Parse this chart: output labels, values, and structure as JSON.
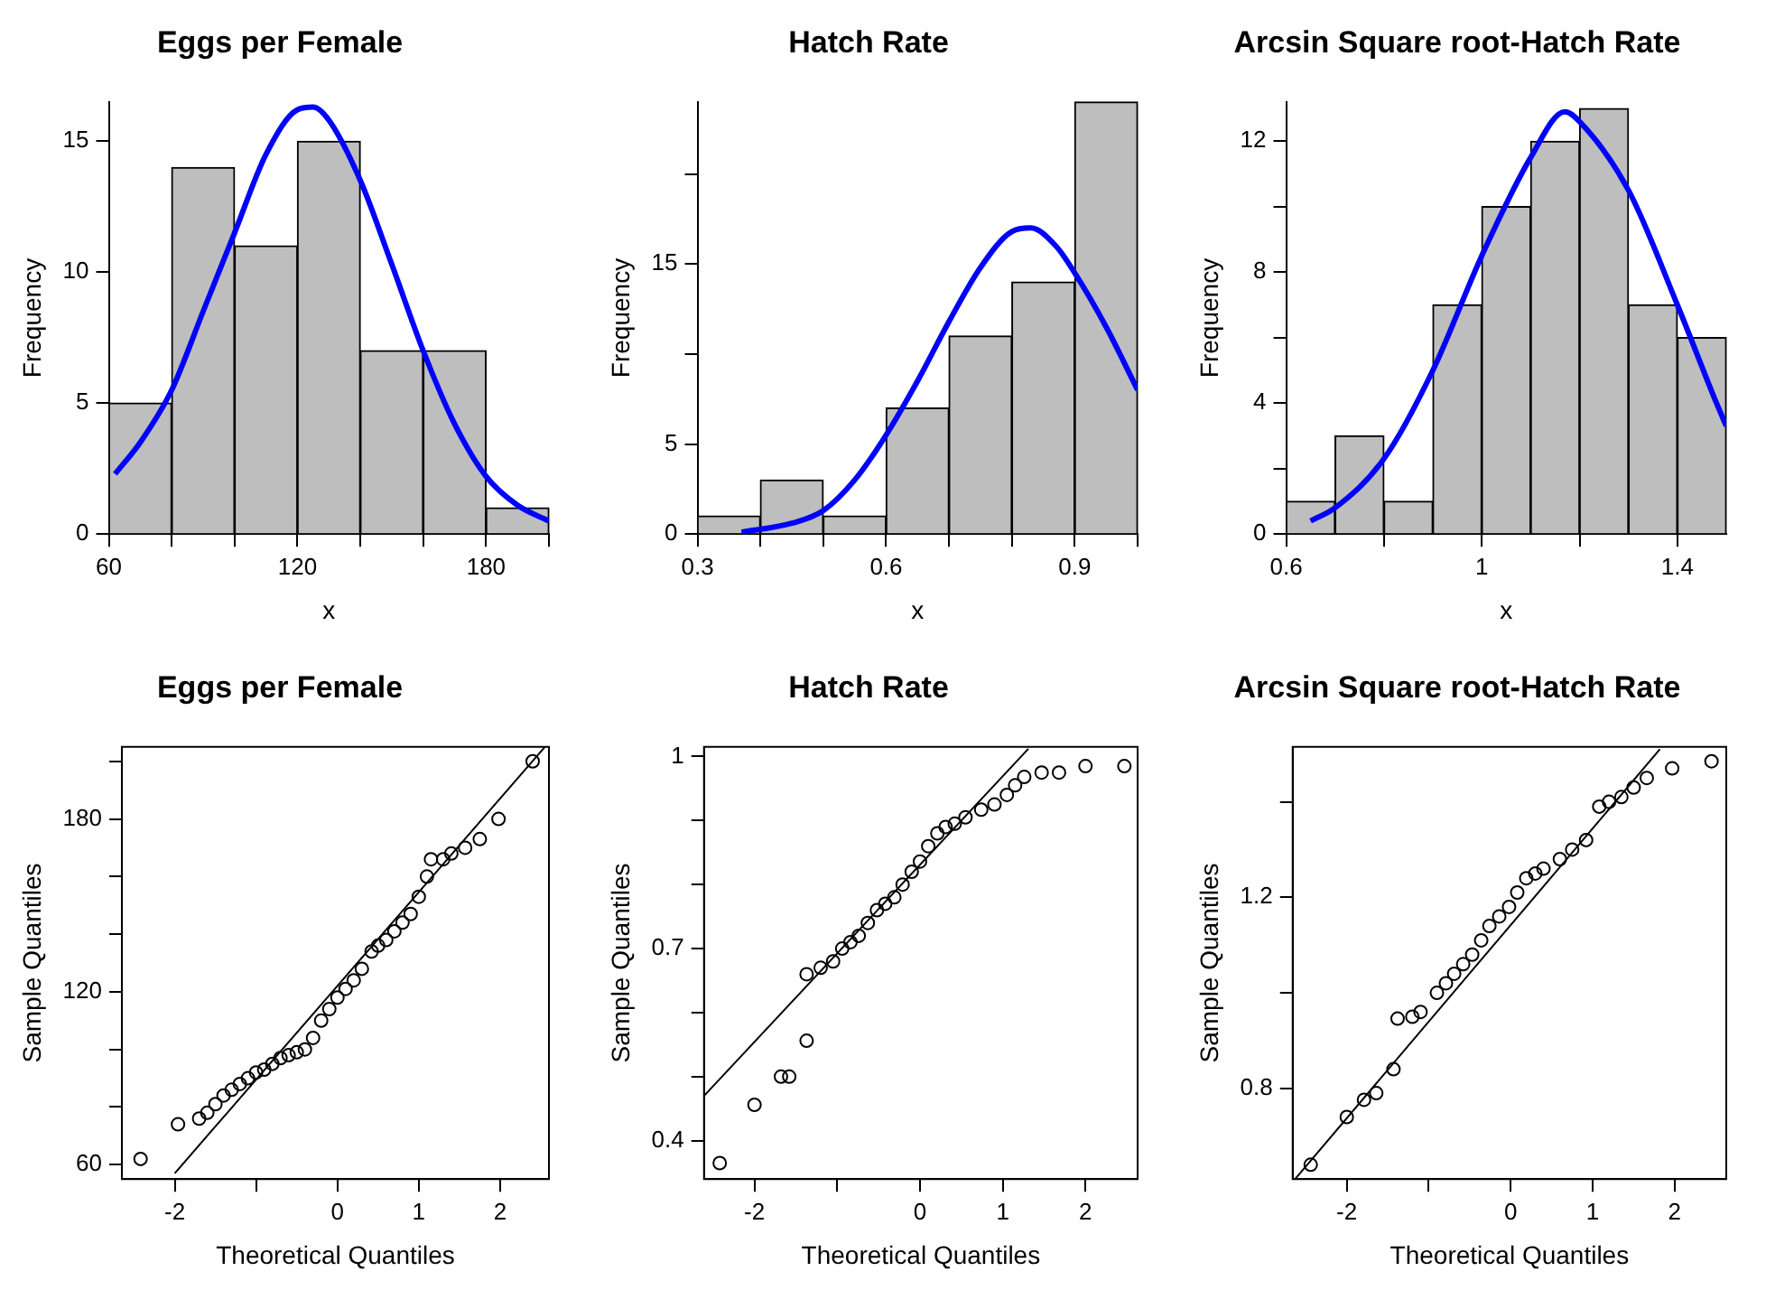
{
  "chart_data": [
    {
      "type": "histogram",
      "title": "Eggs per Female",
      "xlabel": "x",
      "ylabel": "Frequency",
      "xlim": [
        60,
        200
      ],
      "xticks": [
        60,
        {
          "value": 80,
          "label": null
        },
        {
          "value": 100,
          "label": null
        },
        120,
        {
          "value": 140,
          "label": null
        },
        {
          "value": 160,
          "label": null
        },
        180,
        {
          "value": 200,
          "label": null
        }
      ],
      "ylim": [
        0,
        16.5
      ],
      "yticks": [
        0,
        5,
        10,
        15
      ],
      "series": [
        {
          "type": "histogram",
          "color": "#bebebe",
          "bins": [
            60,
            80,
            100,
            120,
            140,
            160,
            180,
            200
          ],
          "values": [
            5,
            14,
            11,
            15,
            7,
            7,
            1
          ]
        },
        {
          "type": "line",
          "color": "#0000ff",
          "x": [
            62,
            70,
            80,
            90,
            100,
            110,
            120,
            125,
            130,
            140,
            150,
            160,
            170,
            180,
            190,
            200
          ],
          "values": [
            2.3,
            3.5,
            5.5,
            8.5,
            11.5,
            14.5,
            16.2,
            16.3,
            15.8,
            13.5,
            10.3,
            7,
            4.2,
            2.2,
            1.1,
            0.5
          ]
        }
      ]
    },
    {
      "type": "histogram",
      "title": "Hatch Rate",
      "xlabel": "x",
      "ylabel": "Frequency",
      "xlim": [
        0.3,
        1.0
      ],
      "xticks": [
        0.3,
        {
          "value": 0.4,
          "label": null
        },
        {
          "value": 0.5,
          "label": null
        },
        0.6,
        {
          "value": 0.7,
          "label": null
        },
        {
          "value": 0.8,
          "label": null
        },
        0.9,
        {
          "value": 1.0,
          "label": null
        }
      ],
      "ylim": [
        0,
        24
      ],
      "yticks": [
        0,
        5,
        {
          "value": 10,
          "label": null
        },
        15,
        {
          "value": 20,
          "label": null
        }
      ],
      "series": [
        {
          "type": "histogram",
          "color": "#bebebe",
          "bins": [
            0.3,
            0.4,
            0.5,
            0.6,
            0.7,
            0.8,
            0.9,
            1.0
          ],
          "values": [
            1,
            3,
            1,
            7,
            11,
            14,
            24
          ]
        },
        {
          "type": "line",
          "color": "#0000ff",
          "x": [
            0.37,
            0.45,
            0.5,
            0.55,
            0.6,
            0.65,
            0.7,
            0.75,
            0.8,
            0.83,
            0.87,
            0.9,
            0.95,
            1.0
          ],
          "values": [
            0.1,
            0.6,
            1.3,
            3,
            5.5,
            8.5,
            11.8,
            14.8,
            16.8,
            17,
            16,
            14.5,
            11.5,
            8
          ]
        }
      ]
    },
    {
      "type": "histogram",
      "title": "Arcsin Square root-Hatch Rate",
      "xlabel": "x",
      "ylabel": "Frequency",
      "xlim": [
        0.6,
        1.5
      ],
      "xticks": [
        0.6,
        {
          "value": 0.8,
          "label": null
        },
        1.0,
        {
          "value": 1.2,
          "label": null
        },
        1.4
      ],
      "ylim": [
        0,
        13.2
      ],
      "yticks": [
        0,
        {
          "value": 2,
          "label": null
        },
        4,
        {
          "value": 6,
          "label": null
        },
        8,
        {
          "value": 10,
          "label": null
        },
        12
      ],
      "series": [
        {
          "type": "histogram",
          "color": "#bebebe",
          "bins": [
            0.6,
            0.7,
            0.8,
            0.9,
            1.0,
            1.1,
            1.2,
            1.3,
            1.4,
            1.5
          ],
          "values": [
            1,
            3,
            1,
            7,
            10,
            12,
            13,
            7,
            6
          ]
        },
        {
          "type": "line",
          "color": "#0000ff",
          "x": [
            0.65,
            0.7,
            0.8,
            0.9,
            1.0,
            1.1,
            1.17,
            1.2,
            1.3,
            1.4,
            1.48,
            1.5
          ],
          "values": [
            0.4,
            0.8,
            2.3,
            5,
            8.5,
            11.5,
            12.9,
            12.6,
            10.5,
            7,
            4,
            3.3
          ]
        }
      ]
    },
    {
      "type": "scatter",
      "title": "Eggs per Female",
      "xlabel": "Theoretical Quantiles",
      "ylabel": "Sample Quantiles",
      "xlim": [
        -2.65,
        2.6
      ],
      "xticks": [
        -2,
        {
          "value": -1,
          "label": null
        },
        0,
        1,
        2
      ],
      "ylim": [
        55,
        205
      ],
      "yticks": [
        60,
        {
          "value": 80,
          "label": null
        },
        {
          "value": 100,
          "label": null
        },
        120,
        {
          "value": 140,
          "label": null
        },
        {
          "value": 160,
          "label": null
        },
        180,
        {
          "value": 200,
          "label": null
        }
      ],
      "series": [
        {
          "type": "scatter",
          "marker": "circle",
          "color": "#000000",
          "x": [
            -2.42,
            -1.96,
            -1.7,
            -1.6,
            -1.5,
            -1.4,
            -1.3,
            -1.2,
            -1.1,
            -1.0,
            -0.9,
            -0.8,
            -0.7,
            -0.6,
            -0.5,
            -0.4,
            -0.3,
            -0.2,
            -0.1,
            0,
            0.1,
            0.2,
            0.3,
            0.42,
            0.5,
            0.6,
            0.7,
            0.8,
            0.9,
            1.0,
            1.1,
            1.15,
            1.3,
            1.4,
            1.57,
            1.75,
            1.98,
            2.4
          ],
          "values": [
            62,
            74,
            76,
            78,
            81,
            84,
            86,
            88,
            90,
            92,
            93,
            95,
            97,
            98,
            99,
            100,
            104,
            110,
            114,
            118,
            121,
            124,
            128,
            134,
            136,
            138,
            141,
            144,
            147,
            153,
            160,
            166,
            166,
            168,
            170,
            173,
            180,
            200
          ]
        },
        {
          "type": "line",
          "color": "#000000",
          "x": [
            -2.0,
            2.55
          ],
          "values": [
            57,
            205
          ]
        }
      ]
    },
    {
      "type": "scatter",
      "title": "Hatch Rate",
      "xlabel": "Theoretical Quantiles",
      "ylabel": "Sample Quantiles",
      "xlim": [
        -2.61,
        2.63
      ],
      "xticks": [
        -2,
        {
          "value": -1,
          "label": null
        },
        0,
        1,
        2
      ],
      "ylim": [
        0.34,
        1.015
      ],
      "yticks": [
        0.4,
        {
          "value": 0.5,
          "label": null
        },
        {
          "value": 0.6,
          "label": null
        },
        0.7,
        {
          "value": 0.8,
          "label": null
        },
        {
          "value": 0.9,
          "label": null
        },
        1.0
      ],
      "series": [
        {
          "type": "scatter",
          "marker": "circle",
          "color": "#000000",
          "x": [
            -2.42,
            -2.0,
            -1.68,
            -1.58,
            -1.37,
            -1.37,
            -1.2,
            -1.05,
            -0.94,
            -0.84,
            -0.74,
            -0.63,
            -0.52,
            -0.42,
            -0.31,
            -0.21,
            -0.1,
            0,
            0.1,
            0.21,
            0.31,
            0.42,
            0.55,
            0.74,
            0.9,
            1.05,
            1.15,
            1.26,
            1.47,
            1.68,
            2.0,
            2.47
          ],
          "values": [
            0.365,
            0.456,
            0.5,
            0.5,
            0.556,
            0.66,
            0.67,
            0.68,
            0.7,
            0.71,
            0.72,
            0.74,
            0.76,
            0.77,
            0.78,
            0.8,
            0.82,
            0.836,
            0.86,
            0.88,
            0.89,
            0.895,
            0.905,
            0.917,
            0.925,
            0.94,
            0.955,
            0.968,
            0.975,
            0.975,
            0.985,
            0.985
          ]
        },
        {
          "type": "line",
          "color": "#000000",
          "x": [
            -2.61,
            1.31
          ],
          "values": [
            0.47,
            1.012
          ]
        }
      ]
    },
    {
      "type": "scatter",
      "title": "Arcsin Square root-Hatch Rate",
      "xlabel": "Theoretical Quantiles",
      "ylabel": "Sample Quantiles",
      "xlim": [
        -2.66,
        2.63
      ],
      "xticks": [
        -2,
        {
          "value": -1,
          "label": null
        },
        0,
        1,
        2
      ],
      "ylim": [
        0.61,
        1.515
      ],
      "yticks": [
        0.8,
        {
          "value": 1.0,
          "label": null
        },
        1.2,
        {
          "value": 1.4,
          "label": null
        }
      ],
      "series": [
        {
          "type": "scatter",
          "marker": "circle",
          "color": "#000000",
          "x": [
            -2.44,
            -2.0,
            -1.79,
            -1.64,
            -1.43,
            -1.38,
            -1.2,
            -1.1,
            -0.9,
            -0.79,
            -0.69,
            -0.58,
            -0.47,
            -0.36,
            -0.26,
            -0.14,
            -0.02,
            0.08,
            0.19,
            0.3,
            0.4,
            0.6,
            0.75,
            0.92,
            1.08,
            1.2,
            1.35,
            1.5,
            1.66,
            1.97,
            2.45
          ],
          "values": [
            0.64,
            0.74,
            0.776,
            0.79,
            0.84,
            0.946,
            0.95,
            0.96,
            1.0,
            1.02,
            1.04,
            1.06,
            1.08,
            1.11,
            1.14,
            1.16,
            1.18,
            1.21,
            1.24,
            1.25,
            1.26,
            1.28,
            1.3,
            1.32,
            1.39,
            1.4,
            1.41,
            1.43,
            1.45,
            1.47,
            1.485
          ]
        },
        {
          "type": "line",
          "color": "#000000",
          "x": [
            -2.63,
            1.82
          ],
          "values": [
            0.61,
            1.51
          ]
        }
      ]
    }
  ]
}
